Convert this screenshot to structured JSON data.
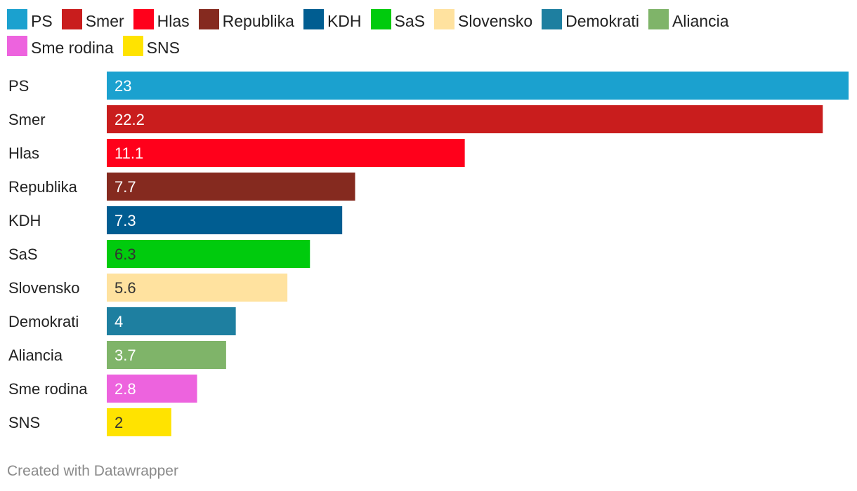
{
  "chart_data": {
    "type": "bar",
    "orientation": "horizontal",
    "categories": [
      "PS",
      "Smer",
      "Hlas",
      "Republika",
      "KDH",
      "SaS",
      "Slovensko",
      "Demokrati",
      "Aliancia",
      "Sme rodina",
      "SNS"
    ],
    "values": [
      23,
      22.2,
      11.1,
      7.7,
      7.3,
      6.3,
      5.6,
      4,
      3.7,
      2.8,
      2
    ],
    "value_labels": [
      "23",
      "22.2",
      "11.1",
      "7.7",
      "7.3",
      "6.3",
      "5.6",
      "4",
      "3.7",
      "2.8",
      "2"
    ],
    "colors": [
      "#1ba1cf",
      "#c91d1d",
      "#ff001b",
      "#852a1f",
      "#005d91",
      "#00cb0d",
      "#ffe29f",
      "#1e7fa0",
      "#7fb469",
      "#ed63de",
      "#ffe300"
    ],
    "label_colors": [
      "#ffffff",
      "#ffffff",
      "#ffffff",
      "#ffffff",
      "#ffffff",
      "#333333",
      "#333333",
      "#ffffff",
      "#ffffff",
      "#ffffff",
      "#333333"
    ],
    "xlim": [
      0,
      23
    ],
    "legend": {
      "position": "top",
      "entries": [
        "PS",
        "Smer",
        "Hlas",
        "Republika",
        "KDH",
        "SaS",
        "Slovensko",
        "Demokrati",
        "Aliancia",
        "Sme rodina",
        "SNS"
      ]
    }
  },
  "footer": {
    "credit": "Created with Datawrapper"
  }
}
